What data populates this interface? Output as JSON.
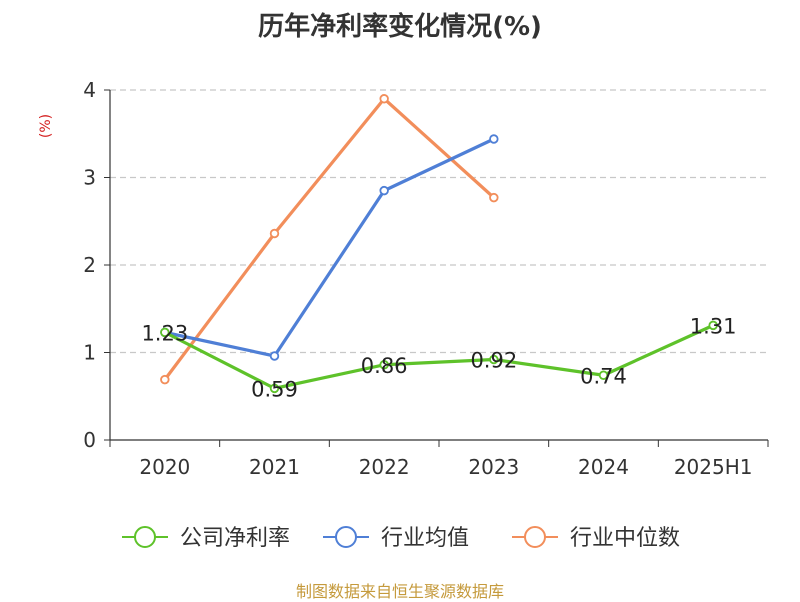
{
  "chart_data": {
    "type": "line",
    "title": "历年净利率变化情况(%)",
    "ylabel": "(%)",
    "categories": [
      "2020",
      "2021",
      "2022",
      "2023",
      "2024",
      "2025H1"
    ],
    "ylim": [
      0,
      4
    ],
    "yticks": [
      0,
      1,
      2,
      3,
      4
    ],
    "grid": true,
    "legend_position": "bottom",
    "series": [
      {
        "name": "公司净利率",
        "color": "#5ec22a",
        "values": [
          1.23,
          0.59,
          0.86,
          0.92,
          0.74,
          1.31
        ],
        "labels": [
          "1.23",
          "0.59",
          "0.86",
          "0.92",
          "0.74",
          "1.31"
        ]
      },
      {
        "name": "行业均值",
        "color": "#4f7fd6",
        "values": [
          1.23,
          0.96,
          2.85,
          3.44,
          null,
          null
        ]
      },
      {
        "name": "行业中位数",
        "color": "#f28e5b",
        "values": [
          0.69,
          2.36,
          3.9,
          2.77,
          null,
          null
        ]
      }
    ]
  },
  "source_text": "制图数据来自恒生聚源数据库"
}
